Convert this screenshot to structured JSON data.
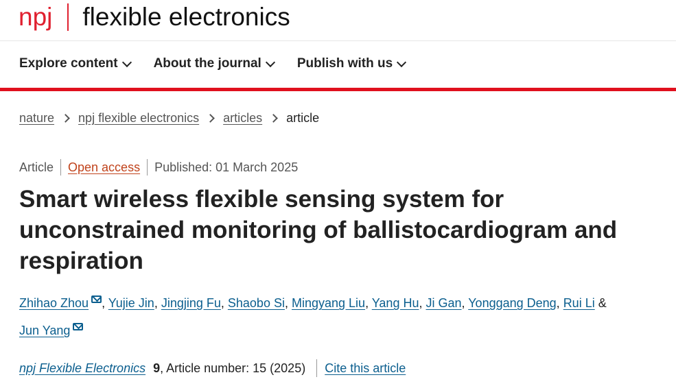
{
  "header": {
    "logo_prefix": "npj",
    "logo_name": "flexible electronics"
  },
  "nav": [
    {
      "label": "Explore content"
    },
    {
      "label": "About the journal"
    },
    {
      "label": "Publish with us"
    }
  ],
  "breadcrumb": [
    "nature",
    "npj flexible electronics",
    "articles",
    "article"
  ],
  "meta": {
    "type": "Article",
    "access": "Open access",
    "published": "Published: 01 March 2025"
  },
  "title": "Smart wireless flexible sensing system for unconstrained monitoring of ballistocardiogram and respiration",
  "authors": [
    "Zhihao Zhou",
    "Yujie Jin",
    "Jingjing Fu",
    "Shaobo Si",
    "Mingyang Liu",
    "Yang Hu",
    "Ji Gan",
    "Yonggang Deng",
    "Rui Li",
    "Jun Yang"
  ],
  "author_sep": ", ",
  "author_and": " & ",
  "citation": {
    "journal": "npj Flexible Electronics",
    "volume": "9",
    "rest": ", Article number: 15 (2025)",
    "cite_link": "Cite this article"
  },
  "colors": {
    "brand_red": "#e0202f",
    "link": "#0b5e8e",
    "open_access": "#c0421b"
  }
}
